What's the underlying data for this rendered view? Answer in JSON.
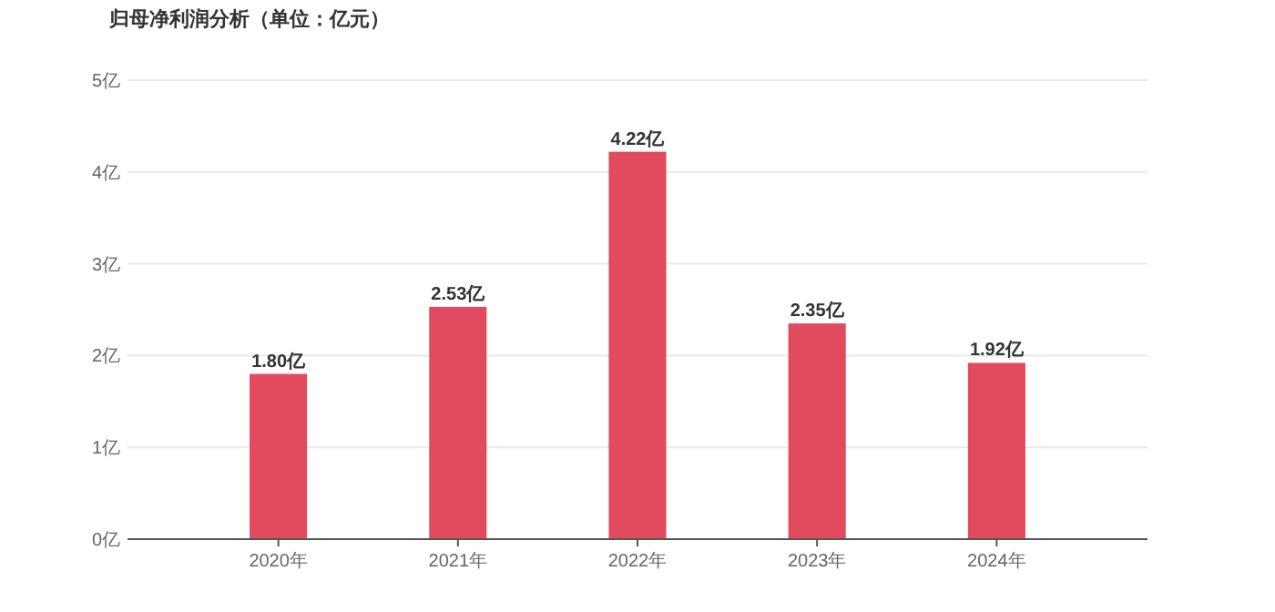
{
  "chart_data": {
    "type": "bar",
    "title": "归母净利润分析（单位：亿元）",
    "categories": [
      "2020年",
      "2021年",
      "2022年",
      "2023年",
      "2024年"
    ],
    "values": [
      1.8,
      2.53,
      4.22,
      2.35,
      1.92
    ],
    "value_labels": [
      "1.80亿",
      "2.53亿",
      "4.22亿",
      "2.35亿",
      "1.92亿"
    ],
    "color": "#e24a5f",
    "ylim": [
      0,
      5
    ],
    "yticks": [
      {
        "value": 0,
        "label": "0亿"
      },
      {
        "value": 1,
        "label": "1亿"
      },
      {
        "value": 2,
        "label": "2亿"
      },
      {
        "value": 3,
        "label": "3亿"
      },
      {
        "value": 4,
        "label": "4亿"
      },
      {
        "value": 5,
        "label": "5亿"
      }
    ],
    "grid": "y"
  }
}
